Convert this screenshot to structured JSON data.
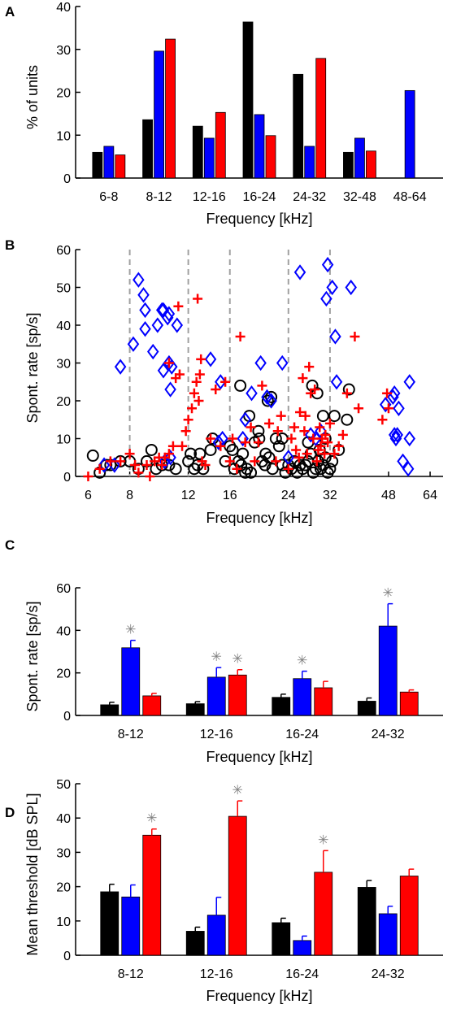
{
  "colors": {
    "black": "#000000",
    "blue": "#0000FF",
    "red": "#FF0000",
    "grid": "#A0A0A0",
    "star": "#808080"
  },
  "chart_data": [
    {
      "panel": "A",
      "type": "bar",
      "categories": [
        "6-8",
        "8-12",
        "12-16",
        "16-24",
        "24-32",
        "32-48",
        "48-64"
      ],
      "series": [
        {
          "color": "#000000",
          "values": [
            6,
            13.6,
            12.1,
            36.4,
            24.2,
            6,
            0
          ]
        },
        {
          "color": "#0000FF",
          "values": [
            7.4,
            29.6,
            9.3,
            14.8,
            7.4,
            9.3,
            20.4
          ]
        },
        {
          "color": "#FF0000",
          "values": [
            5.4,
            32.4,
            15.3,
            9.9,
            27.9,
            6.3,
            0
          ]
        }
      ],
      "xlabel": "Frequency [kHz]",
      "ylabel": "% of units",
      "ylim": [
        0,
        40
      ],
      "yticks": [
        "0",
        "10",
        "20",
        "30",
        "40"
      ]
    },
    {
      "panel": "B",
      "type": "scatter",
      "xscale": "log",
      "xlim": [
        5.5,
        70
      ],
      "ylim": [
        0,
        60
      ],
      "xticks": [
        "6",
        "8",
        "12",
        "16",
        "24",
        "32",
        "48",
        "64"
      ],
      "yticks": [
        "0",
        "10",
        "20",
        "30",
        "40",
        "50",
        "60"
      ],
      "vlines_at": [
        8,
        12,
        16,
        24,
        32
      ],
      "xlabel": "Frequency [kHz]",
      "ylabel": "Spont. rate [sp/s]",
      "series": [
        {
          "marker": "circle",
          "color": "#000000",
          "points": [
            [
              6.2,
              5.5
            ],
            [
              6.5,
              1
            ],
            [
              6.8,
              3
            ],
            [
              7,
              3
            ],
            [
              7.5,
              4
            ],
            [
              8,
              4
            ],
            [
              8.5,
              2
            ],
            [
              9,
              4
            ],
            [
              9.3,
              7
            ],
            [
              9.6,
              2
            ],
            [
              10,
              3
            ],
            [
              10.5,
              3
            ],
            [
              11,
              2
            ],
            [
              12,
              4
            ],
            [
              12.2,
              6
            ],
            [
              12.5,
              2
            ],
            [
              12.8,
              3
            ],
            [
              13,
              6
            ],
            [
              13.3,
              2
            ],
            [
              14,
              7
            ],
            [
              14.2,
              10
            ],
            [
              15.5,
              4
            ],
            [
              16,
              8
            ],
            [
              16.3,
              7
            ],
            [
              16.5,
              2
            ],
            [
              17,
              4
            ],
            [
              17.3,
              3
            ],
            [
              17.5,
              6
            ],
            [
              17.8,
              1
            ],
            [
              18,
              2
            ],
            [
              18.5,
              1
            ],
            [
              19,
              9
            ],
            [
              19.5,
              12
            ],
            [
              20,
              4
            ],
            [
              20.5,
              6
            ],
            [
              21,
              5
            ],
            [
              21.5,
              2
            ],
            [
              22,
              10
            ],
            [
              22.5,
              8
            ],
            [
              23,
              3
            ],
            [
              23.5,
              1
            ],
            [
              24,
              3
            ],
            [
              24.5,
              2
            ],
            [
              25,
              4
            ],
            [
              25.5,
              1
            ],
            [
              26,
              3
            ],
            [
              26.5,
              2
            ],
            [
              27,
              3
            ],
            [
              27.5,
              4
            ],
            [
              28,
              6
            ],
            [
              28.5,
              1
            ],
            [
              29,
              2
            ],
            [
              29.5,
              4
            ],
            [
              30,
              2
            ],
            [
              30.5,
              3
            ],
            [
              31,
              5
            ],
            [
              31.5,
              1
            ],
            [
              32,
              2
            ],
            [
              32.5,
              4
            ],
            [
              33,
              16
            ],
            [
              34,
              7
            ],
            [
              36,
              15
            ],
            [
              36.5,
              23
            ],
            [
              17.2,
              24
            ],
            [
              18.3,
              16
            ],
            [
              19.6,
              10
            ],
            [
              20.8,
              20
            ],
            [
              21.3,
              21
            ],
            [
              20.4,
              3
            ],
            [
              23,
              10
            ],
            [
              27.5,
              9
            ],
            [
              28.3,
              24
            ],
            [
              29.3,
              22
            ],
            [
              30.5,
              16
            ],
            [
              31,
              10
            ],
            [
              29.8,
              7
            ]
          ]
        },
        {
          "marker": "diamond",
          "color": "#0000FF",
          "points": [
            [
              6.7,
              3
            ],
            [
              7.2,
              3
            ],
            [
              7.5,
              29
            ],
            [
              8.2,
              35
            ],
            [
              8.5,
              52
            ],
            [
              8.8,
              48
            ],
            [
              8.9,
              44
            ],
            [
              8.9,
              39
            ],
            [
              9.4,
              33
            ],
            [
              9.7,
              40
            ],
            [
              10,
              44
            ],
            [
              10.1,
              44
            ],
            [
              10.4,
              42
            ],
            [
              10.5,
              43
            ],
            [
              10.1,
              28
            ],
            [
              10.5,
              30
            ],
            [
              10.6,
              23
            ],
            [
              10.7,
              29
            ],
            [
              11.1,
              40
            ],
            [
              10.2,
              4
            ],
            [
              10.6,
              5
            ],
            [
              14,
              31
            ],
            [
              15,
              25
            ],
            [
              14.8,
              9
            ],
            [
              15.2,
              10
            ],
            [
              17.5,
              10
            ],
            [
              17.8,
              15
            ],
            [
              18.6,
              22
            ],
            [
              19.8,
              30
            ],
            [
              20.7,
              21
            ],
            [
              21.3,
              20
            ],
            [
              23,
              30
            ],
            [
              24,
              5
            ],
            [
              26,
              54
            ],
            [
              28,
              11
            ],
            [
              29,
              10
            ],
            [
              30,
              12
            ],
            [
              31.5,
              56
            ],
            [
              31.2,
              47
            ],
            [
              32.5,
              50
            ],
            [
              33.2,
              37
            ],
            [
              33.5,
              25
            ],
            [
              37,
              50
            ],
            [
              47,
              19
            ],
            [
              49.5,
              21
            ],
            [
              50,
              22
            ],
            [
              50,
              11
            ],
            [
              50.5,
              10
            ],
            [
              51,
              11
            ],
            [
              51.5,
              18
            ],
            [
              53,
              4
            ],
            [
              55,
              2
            ],
            [
              55.5,
              25
            ],
            [
              55.5,
              10
            ]
          ]
        },
        {
          "marker": "plus",
          "color": "#FF0000",
          "points": [
            [
              6,
              0
            ],
            [
              6.5,
              2
            ],
            [
              7,
              4
            ],
            [
              7.5,
              4
            ],
            [
              8,
              6
            ],
            [
              8.3,
              3
            ],
            [
              8.5,
              1
            ],
            [
              9,
              3
            ],
            [
              9.2,
              0
            ],
            [
              9.5,
              4
            ],
            [
              9.8,
              5
            ],
            [
              10,
              3
            ],
            [
              10.2,
              5
            ],
            [
              10.5,
              6
            ],
            [
              10.8,
              8
            ],
            [
              10.5,
              30
            ],
            [
              11,
              26
            ],
            [
              11.2,
              45
            ],
            [
              11.3,
              27
            ],
            [
              11.5,
              8
            ],
            [
              11.8,
              12
            ],
            [
              12,
              15
            ],
            [
              12.3,
              18
            ],
            [
              12.5,
              22
            ],
            [
              12.7,
              25
            ],
            [
              12.8,
              47
            ],
            [
              12.9,
              20
            ],
            [
              13,
              27
            ],
            [
              13.1,
              31
            ],
            [
              13.2,
              4
            ],
            [
              13.5,
              3
            ],
            [
              14,
              10
            ],
            [
              14.5,
              23
            ],
            [
              15,
              8
            ],
            [
              15.5,
              25
            ],
            [
              16,
              4
            ],
            [
              16.3,
              10
            ],
            [
              16.8,
              2
            ],
            [
              17.2,
              37
            ],
            [
              17.8,
              9
            ],
            [
              18.5,
              13
            ],
            [
              19,
              4
            ],
            [
              19.5,
              9
            ],
            [
              20,
              24
            ],
            [
              21,
              14
            ],
            [
              22,
              4
            ],
            [
              22.3,
              12
            ],
            [
              22.8,
              16
            ],
            [
              24,
              2
            ],
            [
              24.5,
              10
            ],
            [
              25,
              13
            ],
            [
              25.3,
              7
            ],
            [
              25.8,
              5
            ],
            [
              26,
              17
            ],
            [
              26.5,
              26
            ],
            [
              26.8,
              12
            ],
            [
              27,
              16
            ],
            [
              27.3,
              6
            ],
            [
              27.7,
              29
            ],
            [
              28,
              22
            ],
            [
              28.5,
              10
            ],
            [
              28.8,
              23
            ],
            [
              29.2,
              4
            ],
            [
              29.5,
              7
            ],
            [
              29.8,
              13
            ],
            [
              30,
              8
            ],
            [
              30.3,
              10
            ],
            [
              30.8,
              6
            ],
            [
              31,
              11
            ],
            [
              31.5,
              9
            ],
            [
              32,
              14
            ],
            [
              33,
              6
            ],
            [
              34,
              8
            ],
            [
              35,
              11
            ],
            [
              36,
              22
            ],
            [
              38,
              37
            ],
            [
              39,
              18
            ],
            [
              46,
              15
            ],
            [
              47.5,
              22
            ],
            [
              48,
              18
            ]
          ]
        }
      ]
    },
    {
      "panel": "C",
      "type": "bar",
      "categories": [
        "8-12",
        "12-16",
        "16-24",
        "24-32"
      ],
      "series": [
        {
          "color": "#000000",
          "values": [
            5,
            5.5,
            8.5,
            6.7
          ],
          "errors": [
            1.2,
            1,
            1.5,
            1.5
          ]
        },
        {
          "color": "#0000FF",
          "values": [
            31.8,
            18,
            17.3,
            42
          ],
          "errors": [
            3.5,
            4.5,
            3.5,
            10.5
          ]
        },
        {
          "color": "#FF0000",
          "values": [
            9.2,
            19,
            13,
            11
          ],
          "errors": [
            1.2,
            2.5,
            3,
            1
          ]
        }
      ],
      "significance_stars": [
        {
          "category": "8-12",
          "series": 1,
          "symbol": "✳"
        },
        {
          "category": "12-16",
          "series": 1,
          "symbol": "✳"
        },
        {
          "category": "12-16",
          "series": 2,
          "symbol": "✳"
        },
        {
          "category": "16-24",
          "series": 1,
          "symbol": "✳"
        },
        {
          "category": "24-32",
          "series": 1,
          "symbol": "✳"
        }
      ],
      "xlabel": "Frequency [kHz]",
      "ylabel": "Spont. rate [sp/s]",
      "ylim": [
        0,
        60
      ],
      "yticks": [
        "0",
        "20",
        "40",
        "60"
      ]
    },
    {
      "panel": "D",
      "type": "bar",
      "categories": [
        "8-12",
        "12-16",
        "16-24",
        "24-32"
      ],
      "series": [
        {
          "color": "#000000",
          "values": [
            18.5,
            7,
            9.5,
            19.8
          ],
          "errors": [
            2.2,
            1.2,
            1.3,
            2
          ]
        },
        {
          "color": "#0000FF",
          "values": [
            17,
            11.7,
            4.3,
            12.1
          ],
          "errors": [
            3.5,
            5.2,
            1.3,
            2.2
          ]
        },
        {
          "color": "#FF0000",
          "values": [
            35,
            40.5,
            24.2,
            23.1
          ],
          "errors": [
            1.8,
            4.5,
            6.3,
            2
          ]
        }
      ],
      "significance_stars": [
        {
          "category": "8-12",
          "series": 2,
          "symbol": "✳"
        },
        {
          "category": "12-16",
          "series": 2,
          "symbol": "✳"
        },
        {
          "category": "16-24",
          "series": 2,
          "symbol": "✳"
        }
      ],
      "xlabel": "Frequency [kHz]",
      "ylabel": "Mean threshold [dB SPL]",
      "ylim": [
        0,
        50
      ],
      "yticks": [
        "0",
        "10",
        "20",
        "30",
        "40",
        "50"
      ]
    }
  ]
}
